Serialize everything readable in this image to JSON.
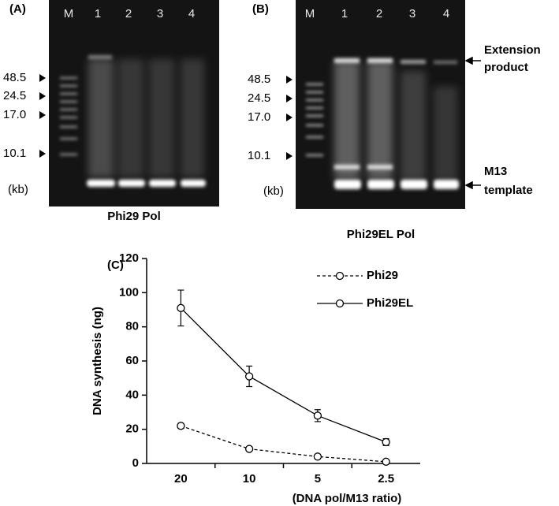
{
  "panel_a": {
    "label": "(A)",
    "lanes": [
      "M",
      "1",
      "2",
      "3",
      "4"
    ],
    "markers": [
      "48.5",
      "24.5",
      "17.0",
      "10.1"
    ],
    "unit": "(kb)",
    "caption": "Phi29 Pol"
  },
  "panel_b": {
    "label": "(B)",
    "lanes": [
      "M",
      "1",
      "2",
      "3",
      "4"
    ],
    "markers": [
      "48.5",
      "24.5",
      "17.0",
      "10.1"
    ],
    "unit": "(kb)",
    "caption": "Phi29EL Pol",
    "annotations": [
      [
        "Extension",
        "product"
      ],
      [
        "M13",
        "template"
      ]
    ]
  },
  "chart_data": {
    "type": "line",
    "title": "(C)",
    "x_label": "(DNA pol/M13 ratio)",
    "y_label": "DNA synthesis (ng)",
    "categories": [
      "20",
      "10",
      "5",
      "2.5"
    ],
    "series": [
      {
        "name": "Phi29",
        "color": "#000000",
        "line_style": "dashed",
        "values": [
          22,
          8.5,
          4,
          1
        ],
        "errors": [
          1.5,
          1,
          0.5,
          0.5
        ]
      },
      {
        "name": "Phi29EL",
        "color": "#000000",
        "line_style": "solid",
        "values": [
          91,
          51,
          28,
          12.5
        ],
        "errors": [
          10.5,
          6,
          3.5,
          2
        ]
      }
    ],
    "ylim": [
      0,
      120
    ],
    "yticks": [
      0,
      20,
      40,
      60,
      80,
      100,
      120
    ],
    "marker": "circle"
  }
}
